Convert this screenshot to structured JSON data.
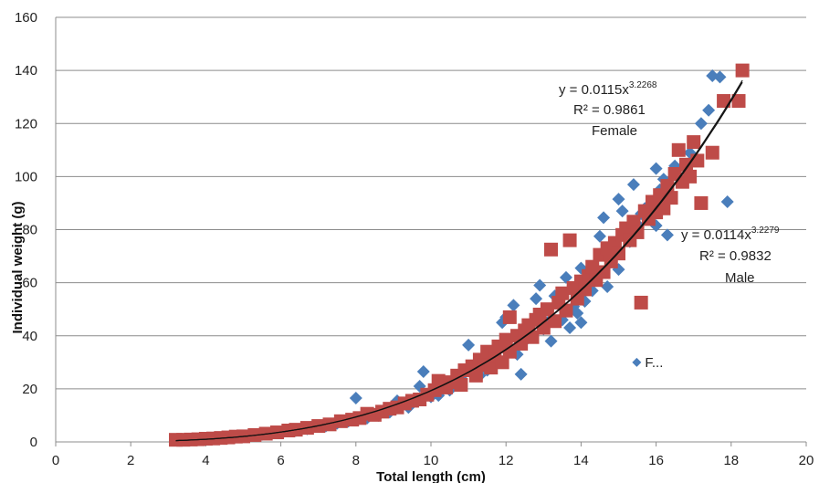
{
  "chart_data": {
    "type": "scatter",
    "xlabel": "Total length (cm)",
    "ylabel": "Individual weight (g)",
    "xlim": [
      0,
      20
    ],
    "ylim": [
      0,
      160
    ],
    "x_ticks": [
      "0",
      "2",
      "4",
      "6",
      "8",
      "10",
      "12",
      "14",
      "16",
      "18",
      "20"
    ],
    "y_ticks": [
      "0",
      "20",
      "40",
      "60",
      "80",
      "100",
      "120",
      "140",
      "160"
    ],
    "grid": "horizontal",
    "colors": {
      "female": "#4a7ebb",
      "male": "#be4b48",
      "trend": "#111111",
      "grid": "#8c8c8c"
    },
    "legend": {
      "marker": "diamond",
      "label": "F...",
      "x": 15.8,
      "y": 30
    },
    "annotations": {
      "female": {
        "equation_base": "y = 0.0115x",
        "exponent": "3.2268",
        "r2": "R² = 0.9861",
        "label": "Female"
      },
      "male": {
        "equation_base": "y = 0.0114x",
        "exponent": "3.2279",
        "r2": "R² = 0.9832",
        "label": "Male"
      }
    },
    "trendlines": [
      {
        "name": "Female",
        "a": 0.0115,
        "b": 3.2268
      },
      {
        "name": "Male",
        "a": 0.0114,
        "b": 3.2279
      }
    ],
    "series": [
      {
        "name": "Female",
        "marker": "diamond",
        "points": [
          [
            3.3,
            0.6
          ],
          [
            3.6,
            0.7
          ],
          [
            3.9,
            0.9
          ],
          [
            4.2,
            1.1
          ],
          [
            4.6,
            1.5
          ],
          [
            5.0,
            2.0
          ],
          [
            5.2,
            2.5
          ],
          [
            5.5,
            2.8
          ],
          [
            5.8,
            3.4
          ],
          [
            6.1,
            4.0
          ],
          [
            6.4,
            4.3
          ],
          [
            6.7,
            4.9
          ],
          [
            6.8,
            5.5
          ],
          [
            7.2,
            6.0
          ],
          [
            7.5,
            7.0
          ],
          [
            7.8,
            7.8
          ],
          [
            8.0,
            16.5
          ],
          [
            8.3,
            9.0
          ],
          [
            8.6,
            10.0
          ],
          [
            8.9,
            11.2
          ],
          [
            9.1,
            15.5
          ],
          [
            9.4,
            13.0
          ],
          [
            9.7,
            21.0
          ],
          [
            9.8,
            26.5
          ],
          [
            10.0,
            17.0
          ],
          [
            10.2,
            17.5
          ],
          [
            10.3,
            21.5
          ],
          [
            10.5,
            19.5
          ],
          [
            10.6,
            23.0
          ],
          [
            10.8,
            24.0
          ],
          [
            11.0,
            36.5
          ],
          [
            11.1,
            26.0
          ],
          [
            11.3,
            25.0
          ],
          [
            11.5,
            27.0
          ],
          [
            11.7,
            30.5
          ],
          [
            11.9,
            45.0
          ],
          [
            12.0,
            47.0
          ],
          [
            12.2,
            51.5
          ],
          [
            12.3,
            33.0
          ],
          [
            12.4,
            25.5
          ],
          [
            12.5,
            38.0
          ],
          [
            12.7,
            40.0
          ],
          [
            12.8,
            54.0
          ],
          [
            12.9,
            59.0
          ],
          [
            13.0,
            42.5
          ],
          [
            13.1,
            45.0
          ],
          [
            13.2,
            38.0
          ],
          [
            13.3,
            55.0
          ],
          [
            13.5,
            46.0
          ],
          [
            13.6,
            62.0
          ],
          [
            13.7,
            43.0
          ],
          [
            13.8,
            51.0
          ],
          [
            13.9,
            48.5
          ],
          [
            14.0,
            45.0
          ],
          [
            14.0,
            65.5
          ],
          [
            14.1,
            53.0
          ],
          [
            14.2,
            60.0
          ],
          [
            14.3,
            57.0
          ],
          [
            14.4,
            62.0
          ],
          [
            14.5,
            77.5
          ],
          [
            14.6,
            84.5
          ],
          [
            14.7,
            58.5
          ],
          [
            14.8,
            71.0
          ],
          [
            14.9,
            73.0
          ],
          [
            15.0,
            91.5
          ],
          [
            15.0,
            65.0
          ],
          [
            15.1,
            87.0
          ],
          [
            15.2,
            80.0
          ],
          [
            15.3,
            75.5
          ],
          [
            15.4,
            97.0
          ],
          [
            15.5,
            82.0
          ],
          [
            15.6,
            86.0
          ],
          [
            15.7,
            88.0
          ],
          [
            15.8,
            84.0
          ],
          [
            15.9,
            90.0
          ],
          [
            16.0,
            81.5
          ],
          [
            16.0,
            103.0
          ],
          [
            16.1,
            95.0
          ],
          [
            16.2,
            99.0
          ],
          [
            16.3,
            78.0
          ],
          [
            16.5,
            104.0
          ],
          [
            16.9,
            109.0
          ],
          [
            17.2,
            120.0
          ],
          [
            17.4,
            125.0
          ],
          [
            17.5,
            138.0
          ],
          [
            17.7,
            137.5
          ],
          [
            17.9,
            90.5
          ]
        ]
      },
      {
        "name": "Male",
        "marker": "square",
        "points": [
          [
            3.2,
            0.8
          ],
          [
            3.4,
            0.8
          ],
          [
            3.6,
            0.9
          ],
          [
            3.8,
            1.0
          ],
          [
            4.0,
            1.2
          ],
          [
            4.2,
            1.3
          ],
          [
            4.4,
            1.5
          ],
          [
            4.6,
            1.7
          ],
          [
            4.8,
            2.0
          ],
          [
            5.0,
            2.1
          ],
          [
            5.3,
            2.6
          ],
          [
            5.6,
            3.1
          ],
          [
            5.9,
            3.6
          ],
          [
            6.2,
            4.3
          ],
          [
            6.4,
            4.6
          ],
          [
            6.7,
            5.3
          ],
          [
            7.0,
            6.0
          ],
          [
            7.3,
            6.6
          ],
          [
            7.6,
            7.8
          ],
          [
            7.9,
            8.4
          ],
          [
            8.1,
            9.0
          ],
          [
            8.3,
            10.6
          ],
          [
            8.5,
            10.2
          ],
          [
            8.7,
            11.4
          ],
          [
            8.9,
            12.5
          ],
          [
            9.1,
            13.0
          ],
          [
            9.3,
            14.5
          ],
          [
            9.5,
            15.5
          ],
          [
            9.7,
            16.0
          ],
          [
            9.9,
            17.8
          ],
          [
            10.1,
            19.5
          ],
          [
            10.2,
            23.0
          ],
          [
            10.4,
            20.5
          ],
          [
            10.5,
            22.5
          ],
          [
            10.7,
            25.0
          ],
          [
            10.8,
            21.5
          ],
          [
            10.9,
            27.0
          ],
          [
            11.1,
            28.5
          ],
          [
            11.2,
            25.0
          ],
          [
            11.3,
            31.0
          ],
          [
            11.4,
            29.0
          ],
          [
            11.5,
            34.0
          ],
          [
            11.6,
            28.0
          ],
          [
            11.7,
            32.5
          ],
          [
            11.8,
            36.0
          ],
          [
            11.9,
            30.0
          ],
          [
            12.0,
            38.5
          ],
          [
            12.1,
            47.0
          ],
          [
            12.1,
            34.0
          ],
          [
            12.3,
            40.0
          ],
          [
            12.4,
            37.0
          ],
          [
            12.5,
            42.0
          ],
          [
            12.6,
            44.0
          ],
          [
            12.7,
            39.5
          ],
          [
            12.8,
            46.0
          ],
          [
            12.9,
            48.0
          ],
          [
            13.0,
            43.0
          ],
          [
            13.1,
            50.0
          ],
          [
            13.2,
            72.5
          ],
          [
            13.3,
            45.5
          ],
          [
            13.4,
            52.5
          ],
          [
            13.5,
            56.0
          ],
          [
            13.6,
            49.5
          ],
          [
            13.7,
            76.0
          ],
          [
            13.8,
            58.0
          ],
          [
            13.9,
            54.0
          ],
          [
            14.0,
            60.5
          ],
          [
            14.1,
            57.5
          ],
          [
            14.2,
            62.5
          ],
          [
            14.3,
            66.0
          ],
          [
            14.4,
            61.0
          ],
          [
            14.5,
            70.5
          ],
          [
            14.6,
            64.0
          ],
          [
            14.7,
            73.0
          ],
          [
            14.8,
            68.0
          ],
          [
            14.9,
            75.0
          ],
          [
            15.0,
            71.0
          ],
          [
            15.1,
            78.0
          ],
          [
            15.2,
            80.5
          ],
          [
            15.3,
            76.0
          ],
          [
            15.4,
            83.0
          ],
          [
            15.5,
            79.0
          ],
          [
            15.6,
            52.5
          ],
          [
            15.7,
            87.0
          ],
          [
            15.8,
            84.0
          ],
          [
            15.9,
            90.5
          ],
          [
            16.0,
            86.5
          ],
          [
            16.1,
            93.0
          ],
          [
            16.2,
            88.0
          ],
          [
            16.3,
            96.5
          ],
          [
            16.4,
            92.0
          ],
          [
            16.5,
            101.0
          ],
          [
            16.6,
            110.0
          ],
          [
            16.7,
            98.0
          ],
          [
            16.8,
            104.5
          ],
          [
            16.9,
            100.0
          ],
          [
            17.0,
            113.0
          ],
          [
            17.1,
            106.0
          ],
          [
            17.2,
            90.0
          ],
          [
            17.5,
            109.0
          ],
          [
            17.8,
            128.5
          ],
          [
            18.2,
            128.5
          ],
          [
            18.3,
            140.0
          ]
        ]
      }
    ]
  }
}
